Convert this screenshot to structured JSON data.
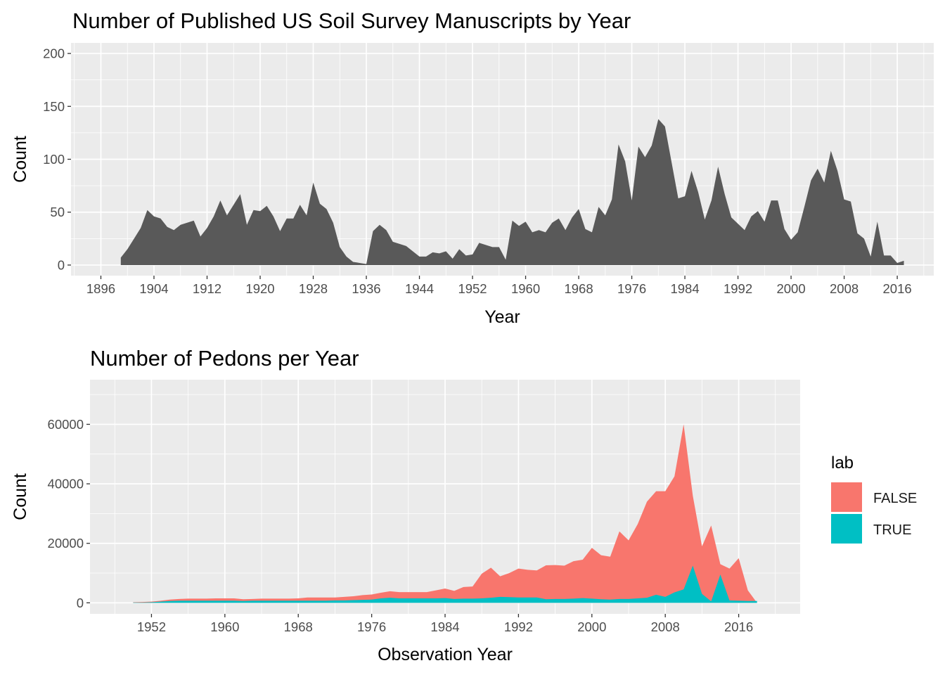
{
  "chart_data": [
    {
      "type": "area",
      "title": "Number of Published US Soil Survey Manuscripts by Year",
      "xlabel": "Year",
      "ylabel": "Count",
      "xlim": [
        1891.5,
        2021.5
      ],
      "ylim": [
        -10,
        210
      ],
      "x_ticks": [
        1896,
        1904,
        1912,
        1920,
        1928,
        1936,
        1944,
        1952,
        1960,
        1968,
        1976,
        1984,
        1992,
        2000,
        2008,
        2016
      ],
      "y_ticks": [
        0,
        50,
        100,
        150,
        200
      ],
      "grid": true,
      "fill_color": "#595959",
      "series": [
        {
          "x": [
            1899,
            1900,
            1901,
            1902,
            1903,
            1904,
            1905,
            1906,
            1907,
            1908,
            1909,
            1910,
            1911,
            1912,
            1913,
            1914,
            1915,
            1916,
            1917,
            1918,
            1919,
            1920,
            1921,
            1922,
            1923,
            1924,
            1925,
            1926,
            1927,
            1928,
            1929,
            1930,
            1931,
            1932,
            1933,
            1934,
            1935,
            1936,
            1937,
            1938,
            1939,
            1940,
            1941,
            1942,
            1943,
            1944,
            1945,
            1946,
            1947,
            1948,
            1949,
            1950,
            1951,
            1952,
            1953,
            1954,
            1955,
            1956,
            1957,
            1958,
            1959,
            1960,
            1961,
            1962,
            1963,
            1964,
            1965,
            1966,
            1967,
            1968,
            1969,
            1970,
            1971,
            1972,
            1973,
            1974,
            1975,
            1976,
            1977,
            1978,
            1979,
            1980,
            1981,
            1982,
            1983,
            1984,
            1985,
            1986,
            1987,
            1988,
            1989,
            1990,
            1991,
            1992,
            1993,
            1994,
            1995,
            1996,
            1997,
            1998,
            1999,
            2000,
            2001,
            2002,
            2003,
            2004,
            2005,
            2006,
            2007,
            2008,
            2009,
            2010,
            2011,
            2012,
            2013,
            2014,
            2015,
            2016,
            2017
          ],
          "values": [
            7,
            15,
            25,
            35,
            52,
            46,
            44,
            36,
            33,
            38,
            40,
            42,
            27,
            35,
            46,
            61,
            47,
            57,
            67,
            38,
            52,
            51,
            56,
            46,
            32,
            44,
            44,
            57,
            47,
            78,
            58,
            53,
            40,
            17,
            8,
            3,
            2,
            1,
            32,
            38,
            33,
            22,
            20,
            18,
            13,
            8,
            8,
            12,
            11,
            13,
            6,
            15,
            9,
            10,
            21,
            19,
            17,
            17,
            5,
            42,
            37,
            41,
            31,
            33,
            31,
            40,
            44,
            33,
            45,
            53,
            34,
            31,
            55,
            47,
            62,
            114,
            98,
            61,
            112,
            102,
            113,
            138,
            131,
            97,
            63,
            65,
            89,
            69,
            43,
            61,
            93,
            67,
            45,
            39,
            33,
            46,
            51,
            41,
            61,
            61,
            34,
            24,
            31,
            55,
            80,
            91,
            78,
            108,
            89,
            62,
            60,
            30,
            25,
            8,
            41,
            9,
            9,
            2,
            4
          ]
        }
      ]
    },
    {
      "type": "area",
      "title": "Number of Pedons per Year",
      "xlabel": "Observation Year",
      "ylabel": "Count",
      "xlim": [
        1945.3,
        2022.7
      ],
      "ylim": [
        -3700,
        75000
      ],
      "x_ticks": [
        1952,
        1960,
        1968,
        1976,
        1984,
        1992,
        2000,
        2008,
        2016
      ],
      "y_ticks": [
        0,
        20000,
        40000,
        60000
      ],
      "grid": true,
      "legend": {
        "title": "lab",
        "position": "right"
      },
      "x": [
        1950,
        1951,
        1952,
        1953,
        1954,
        1955,
        1956,
        1957,
        1958,
        1959,
        1960,
        1961,
        1962,
        1963,
        1964,
        1965,
        1966,
        1967,
        1968,
        1969,
        1970,
        1971,
        1972,
        1973,
        1974,
        1975,
        1976,
        1977,
        1978,
        1979,
        1980,
        1981,
        1982,
        1983,
        1984,
        1985,
        1986,
        1987,
        1988,
        1989,
        1990,
        1991,
        1992,
        1993,
        1994,
        1995,
        1996,
        1997,
        1998,
        1999,
        2000,
        2001,
        2002,
        2003,
        2004,
        2005,
        2006,
        2007,
        2008,
        2009,
        2010,
        2011,
        2012,
        2013,
        2014,
        2015,
        2016,
        2017,
        2018
      ],
      "series": [
        {
          "name": "FALSE",
          "color": "#F8766D",
          "values": [
            200,
            300,
            400,
            700,
            1100,
            1300,
            1400,
            1400,
            1400,
            1500,
            1500,
            1500,
            1200,
            1300,
            1400,
            1400,
            1400,
            1400,
            1500,
            1800,
            1800,
            1800,
            1800,
            2000,
            2200,
            2600,
            2800,
            3400,
            3900,
            3600,
            3600,
            3600,
            3600,
            4200,
            4800,
            4000,
            5300,
            5500,
            9800,
            11800,
            8900,
            10000,
            11500,
            11100,
            10900,
            12600,
            12700,
            12500,
            14000,
            14500,
            18500,
            16000,
            15500,
            24000,
            21000,
            26500,
            34000,
            37500,
            37500,
            42500,
            60000,
            36000,
            19000,
            26000,
            13000,
            11500,
            15000,
            4200,
            0
          ],
          "top": [
            200,
            300,
            400,
            700,
            1100,
            1300,
            1400,
            1400,
            1400,
            1500,
            1500,
            1500,
            1200,
            1300,
            1400,
            1400,
            1400,
            1400,
            1500,
            1800,
            1800,
            1800,
            1800,
            2000,
            2200,
            2600,
            2800,
            3400,
            3900,
            3600,
            3600,
            3600,
            3600,
            4200,
            4800,
            4000,
            5300,
            5500,
            9800,
            11800,
            8900,
            10000,
            11500,
            11100,
            10900,
            12600,
            12700,
            12500,
            14000,
            14500,
            18500,
            16000,
            15500,
            24000,
            21000,
            26500,
            34000,
            37500,
            37500,
            42500,
            60000,
            36000,
            19000,
            26000,
            13000,
            11500,
            15000,
            4200,
            0
          ]
        },
        {
          "name": "TRUE",
          "color": "#00BFC4",
          "values": [
            100,
            100,
            200,
            400,
            600,
            700,
            700,
            700,
            700,
            700,
            700,
            700,
            600,
            700,
            700,
            700,
            700,
            700,
            700,
            700,
            700,
            700,
            800,
            800,
            900,
            1000,
            1100,
            1500,
            1700,
            1500,
            1500,
            1500,
            1500,
            1500,
            1600,
            1300,
            1400,
            1400,
            1500,
            1700,
            2000,
            1900,
            1800,
            1800,
            1800,
            1200,
            1300,
            1300,
            1400,
            1600,
            1400,
            1200,
            1100,
            1300,
            1300,
            1500,
            1700,
            2700,
            2000,
            3500,
            4500,
            12500,
            3000,
            500,
            9500,
            800,
            700,
            600,
            600
          ]
        }
      ]
    }
  ],
  "legend": {
    "title": "lab",
    "items": [
      {
        "label": "FALSE",
        "color": "#F8766D"
      },
      {
        "label": "TRUE",
        "color": "#00BFC4"
      }
    ]
  }
}
